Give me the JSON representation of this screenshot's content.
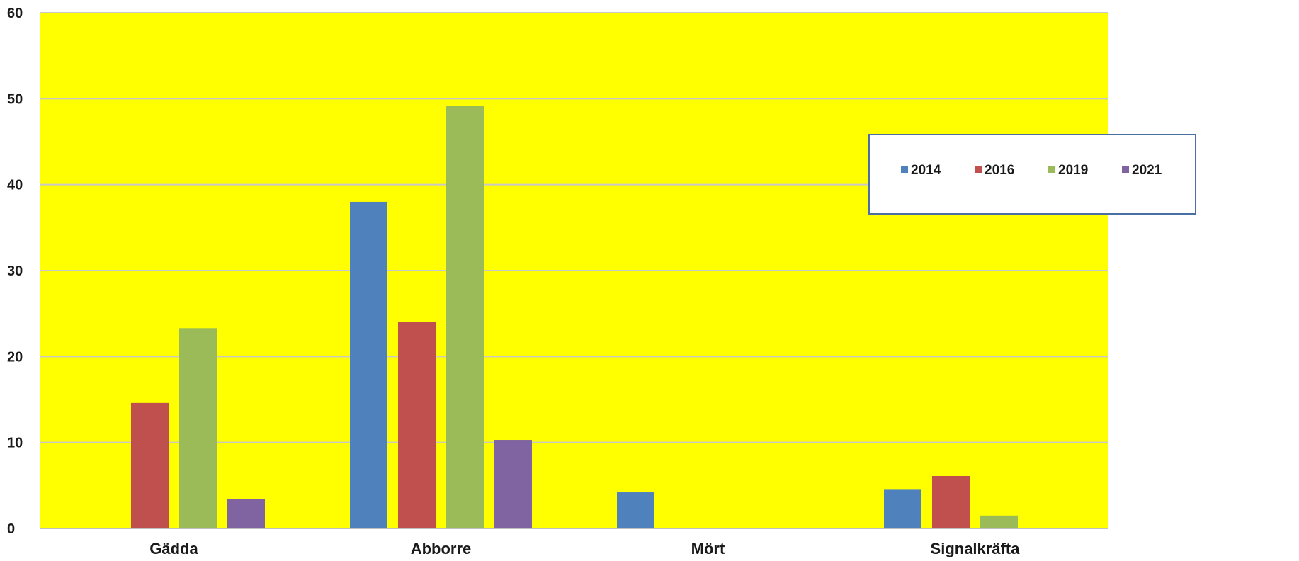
{
  "chart_data": {
    "type": "bar",
    "categories": [
      "Gädda",
      "Abborre",
      "Mört",
      "Signalkräfta"
    ],
    "series": [
      {
        "name": "2014",
        "color": "#4F81BD",
        "values": [
          0,
          38,
          4.2,
          4.5
        ]
      },
      {
        "name": "2016",
        "color": "#C0504D",
        "values": [
          14.6,
          24,
          0,
          6.1
        ]
      },
      {
        "name": "2019",
        "color": "#9BBB59",
        "values": [
          23.3,
          49.2,
          0,
          1.5
        ]
      },
      {
        "name": "2021",
        "color": "#8064A2",
        "values": [
          3.4,
          10.3,
          0,
          0
        ]
      }
    ],
    "yticks": [
      "0",
      "10",
      "20",
      "30",
      "40",
      "50",
      "60"
    ],
    "ylim": [
      0,
      60
    ],
    "grid": true,
    "legend_position": "top-right",
    "plot_background": "#FFFF00",
    "xlabel": "",
    "ylabel": "",
    "title": ""
  }
}
